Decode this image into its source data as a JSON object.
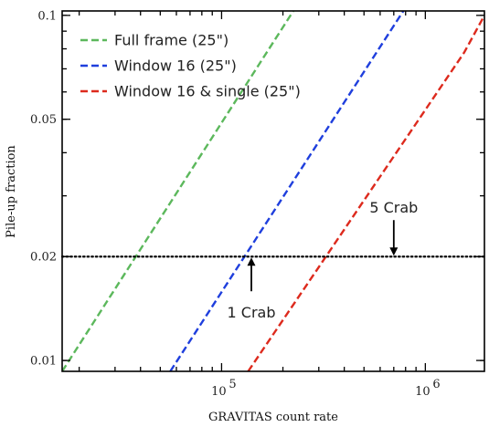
{
  "chart_data": {
    "type": "line",
    "title": "",
    "xlabel": "GRAVITAS count rate",
    "ylabel": "Pile-up fraction",
    "x_scale": "log",
    "y_scale": "log",
    "xlim": [
      16500,
      1950000
    ],
    "ylim": [
      0.0093,
      0.103
    ],
    "x_ticks": [
      {
        "value": 100000,
        "label": "10",
        "exp": "5"
      },
      {
        "value": 1000000,
        "label": "10",
        "exp": "6"
      }
    ],
    "y_ticks": [
      {
        "value": 0.01,
        "label": "0.01"
      },
      {
        "value": 0.02,
        "label": "0.02"
      },
      {
        "value": 0.05,
        "label": "0.05"
      },
      {
        "value": 0.1,
        "label": "0.1"
      }
    ],
    "legend_position": "top-left",
    "grid": false,
    "series": [
      {
        "name": "Full frame  (25\")",
        "color": "#5cb85c",
        "x": [
          16500,
          225000
        ],
        "y": [
          0.0093,
          0.103
        ]
      },
      {
        "name": "Window 16  (25\")",
        "color": "#1f3fdd",
        "x": [
          56000,
          780000
        ],
        "y": [
          0.0093,
          0.103
        ]
      },
      {
        "name": "Window 16 & single (25\")",
        "color": "#dd2a1d",
        "x": [
          135000,
          1550000,
          1950000
        ],
        "y": [
          0.0093,
          0.078,
          0.1
        ]
      }
    ],
    "threshold": {
      "y": 0.02,
      "style": "dotted",
      "color": "#000000"
    },
    "annotations": [
      {
        "text": "1 Crab",
        "x": 140000,
        "y": 0.02,
        "position": "below"
      },
      {
        "text": "5 Crab",
        "x": 700000,
        "y": 0.02,
        "position": "above"
      }
    ]
  }
}
